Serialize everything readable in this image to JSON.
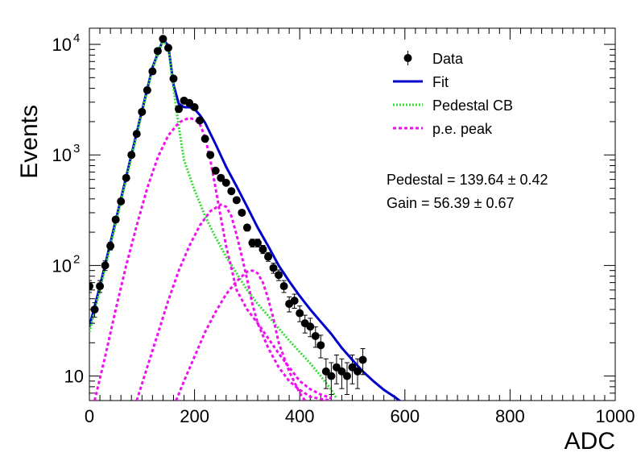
{
  "chart_data": {
    "type": "scatter",
    "xlabel": "ADC",
    "ylabel": "Events",
    "xlim": [
      0,
      1000
    ],
    "ylim": [
      6,
      14000
    ],
    "yscale": "log",
    "grid": false,
    "legend_placement": "top-right",
    "x_ticks": [
      {
        "value": 0,
        "label": "0"
      },
      {
        "value": 200,
        "label": "200"
      },
      {
        "value": 400,
        "label": "400"
      },
      {
        "value": 600,
        "label": "600"
      },
      {
        "value": 800,
        "label": "800"
      },
      {
        "value": 1000,
        "label": "1000"
      }
    ],
    "y_ticks": [
      {
        "value": 10,
        "base": "10",
        "exp": ""
      },
      {
        "value": 100,
        "base": "10",
        "exp": "2"
      },
      {
        "value": 1000,
        "base": "10",
        "exp": "3"
      },
      {
        "value": 10000,
        "base": "10",
        "exp": "4"
      }
    ],
    "legend": [
      {
        "label": "Data",
        "style": "marker",
        "color": "#000000"
      },
      {
        "label": "Fit",
        "style": "solid",
        "color": "#0000cc"
      },
      {
        "label": "Pedestal CB",
        "style": "dotted",
        "color": "#33dd33"
      },
      {
        "label": "p.e. peak",
        "style": "dashed",
        "color": "#ee11ee"
      }
    ],
    "annotations": [
      "Pedestal = 139.64 ± 0.42",
      "Gain = 56.39 ± 0.67"
    ],
    "series": [
      {
        "name": "Data",
        "kind": "points",
        "color": "#000000",
        "x": [
          0,
          10,
          20,
          30,
          40,
          50,
          60,
          70,
          80,
          90,
          100,
          110,
          120,
          130,
          140,
          150,
          160,
          170,
          180,
          190,
          200,
          210,
          220,
          230,
          240,
          250,
          260,
          270,
          280,
          290,
          300,
          310,
          320,
          330,
          340,
          350,
          360,
          370,
          380,
          390,
          400,
          410,
          420,
          430,
          440,
          450,
          460,
          470,
          480,
          490,
          500,
          510,
          520
        ],
        "y": [
          65,
          40,
          65,
          100,
          150,
          260,
          380,
          620,
          1000,
          1550,
          2450,
          3850,
          5700,
          8700,
          11200,
          9300,
          4900,
          2600,
          3100,
          2950,
          2700,
          2050,
          1400,
          1000,
          720,
          620,
          560,
          470,
          390,
          300,
          220,
          160,
          160,
          140,
          120,
          95,
          82,
          65,
          45,
          48,
          37,
          30,
          28,
          23,
          19,
          11,
          10,
          12,
          11,
          10,
          12,
          11,
          14
        ],
        "err": [
          8,
          6,
          8,
          10,
          12,
          16,
          19,
          25,
          32,
          39,
          49,
          62,
          75,
          93,
          105,
          96,
          70,
          51,
          56,
          54,
          52,
          45,
          37,
          32,
          27,
          25,
          24,
          22,
          20,
          17,
          15,
          13,
          13,
          12,
          11,
          10,
          9,
          8,
          7,
          7,
          6,
          5.5,
          5.3,
          4.8,
          4.4,
          3.3,
          3.2,
          3.5,
          3.3,
          3.2,
          3.5,
          3.3,
          3.7
        ]
      },
      {
        "name": "Fit",
        "kind": "line",
        "color": "#0000cc",
        "x": [
          0,
          20,
          40,
          60,
          80,
          100,
          120,
          140,
          150,
          160,
          170,
          180,
          190,
          200,
          210,
          220,
          240,
          260,
          280,
          300,
          320,
          340,
          360,
          380,
          400,
          420,
          440,
          460,
          480,
          500,
          520,
          540,
          560,
          580,
          600
        ],
        "y": [
          28,
          65,
          160,
          400,
          1000,
          2500,
          6200,
          11000,
          9800,
          4300,
          2900,
          2700,
          2700,
          2600,
          2300,
          1950,
          1250,
          780,
          520,
          340,
          220,
          150,
          100,
          72,
          53,
          40,
          31,
          24,
          18,
          14,
          11,
          9,
          7.5,
          6.5,
          5.5
        ]
      },
      {
        "name": "Pedestal CB",
        "kind": "line",
        "color": "#33dd33",
        "x": [
          0,
          20,
          40,
          60,
          80,
          100,
          120,
          140,
          150,
          160,
          170,
          180,
          200,
          220,
          240,
          260,
          280,
          300,
          320,
          340,
          360,
          380,
          400,
          420,
          440,
          460,
          470
        ],
        "y": [
          25,
          60,
          150,
          380,
          950,
          2400,
          6000,
          10800,
          9500,
          4000,
          1800,
          900,
          480,
          280,
          180,
          120,
          85,
          60,
          45,
          35,
          27,
          21,
          16.5,
          13,
          10,
          7.5,
          6.3
        ]
      },
      {
        "name": "p.e. peak 1",
        "kind": "line",
        "color": "#ee11ee",
        "x": [
          10,
          30,
          50,
          70,
          90,
          110,
          130,
          150,
          170,
          180,
          190,
          200,
          210,
          220,
          230,
          240,
          250,
          260,
          280,
          300,
          320,
          340,
          360,
          380,
          400,
          420,
          440,
          460
        ],
        "y": [
          6,
          15,
          40,
          100,
          230,
          500,
          950,
          1500,
          1950,
          2080,
          2150,
          2100,
          1900,
          1450,
          900,
          500,
          270,
          150,
          60,
          40,
          30,
          22,
          16,
          12,
          9,
          7.6,
          6.8,
          6.3
        ]
      },
      {
        "name": "p.e. peak 2",
        "kind": "line",
        "color": "#ee11ee",
        "x": [
          90,
          110,
          130,
          150,
          170,
          190,
          210,
          230,
          250,
          260,
          270,
          280,
          290,
          300,
          310,
          320,
          340,
          360,
          380,
          400,
          420,
          440,
          460
        ],
        "y": [
          6,
          12,
          24,
          48,
          90,
          150,
          230,
          310,
          355,
          340,
          280,
          190,
          120,
          75,
          45,
          30,
          18,
          12,
          9,
          7.5,
          6.5,
          6.2,
          6
        ]
      },
      {
        "name": "p.e. peak 3",
        "kind": "line",
        "color": "#ee11ee",
        "x": [
          165,
          180,
          200,
          220,
          240,
          260,
          280,
          300,
          310,
          320,
          330,
          340,
          350,
          360,
          380,
          400,
          410
        ],
        "y": [
          6,
          9,
          15,
          25,
          38,
          55,
          72,
          88,
          90,
          85,
          70,
          50,
          33,
          20,
          11,
          7,
          6
        ]
      }
    ]
  }
}
